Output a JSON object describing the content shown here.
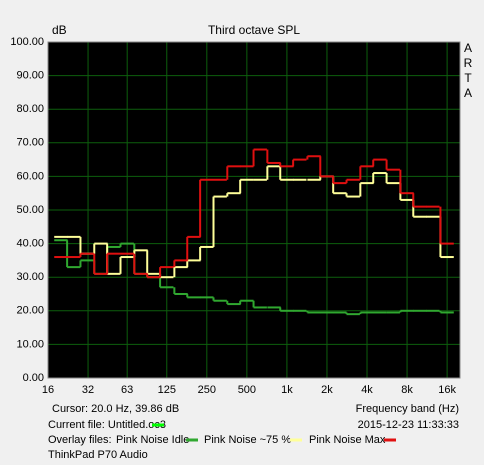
{
  "chart_data": {
    "type": "step",
    "title": "Third octave SPL",
    "y_label": "dB",
    "x_label": "Frequency band (Hz)",
    "brand": [
      "A",
      "R",
      "T",
      "A"
    ],
    "cursor": "Cursor:   20.0 Hz, 39.86 dB",
    "current_file": {
      "label": "Current file: Untitled.oc3",
      "color": "#00ff00"
    },
    "overlay_label": "Overlay files:",
    "timestamp": "2015-12-23  11:33:33",
    "device": "ThinkPad P70 Audio",
    "x_scale": "log",
    "grid": true,
    "x": [
      20,
      25,
      31.5,
      40,
      50,
      63,
      80,
      100,
      125,
      160,
      200,
      250,
      315,
      400,
      500,
      630,
      800,
      1000,
      1250,
      1600,
      2000,
      2500,
      3150,
      4000,
      5000,
      6300,
      8000,
      10000,
      12500,
      16000
    ],
    "series": [
      {
        "name": "Pink Noise Idle",
        "color": "#30a830",
        "values": [
          41,
          33,
          35,
          31,
          39,
          40,
          31,
          30,
          27,
          25,
          24,
          24,
          23,
          22,
          23,
          21,
          21,
          20,
          20,
          19.5,
          19.5,
          19.5,
          19,
          19.5,
          19.5,
          19.5,
          20,
          20,
          20,
          19.5
        ]
      },
      {
        "name": "Pink Noise ~75 %",
        "color": "#ffff99",
        "values": [
          42,
          42,
          37,
          40,
          31,
          36,
          38,
          31,
          30,
          33,
          35,
          39,
          54,
          55,
          59,
          59,
          63,
          59,
          59,
          59,
          60,
          55,
          54,
          58,
          61,
          58,
          53,
          48,
          48,
          36
        ]
      },
      {
        "name": "Pink Noise Max",
        "color": "#e01010",
        "values": [
          36,
          36,
          37,
          31,
          37,
          37,
          31,
          30,
          33,
          35,
          42,
          59,
          59,
          63,
          63,
          68,
          64,
          63,
          65,
          66,
          60,
          58,
          59,
          63,
          65,
          62,
          55,
          51,
          51,
          40
        ]
      }
    ],
    "xlim": [
      16,
      20000
    ],
    "xticks": [
      16,
      32,
      63,
      125,
      250,
      500,
      {
        "value": 1000,
        "label": "1k"
      },
      {
        "value": 2000,
        "label": "2k"
      },
      {
        "value": 4000,
        "label": "4k"
      },
      {
        "value": 8000,
        "label": "8k"
      },
      {
        "value": 16000,
        "label": "16k"
      }
    ],
    "ylim": [
      0,
      100
    ],
    "yticks": [
      {
        "value": 0,
        "label": "0.00"
      },
      {
        "value": 10,
        "label": "10.00"
      },
      {
        "value": 20,
        "label": "20.00"
      },
      {
        "value": 30,
        "label": "30.00"
      },
      {
        "value": 40,
        "label": "40.00"
      },
      {
        "value": 50,
        "label": "50.00"
      },
      {
        "value": 60,
        "label": "60.00"
      },
      {
        "value": 70,
        "label": "70.00"
      },
      {
        "value": 80,
        "label": "80.00"
      },
      {
        "value": 90,
        "label": "90.00"
      },
      {
        "value": 100,
        "label": "100.00"
      }
    ]
  }
}
